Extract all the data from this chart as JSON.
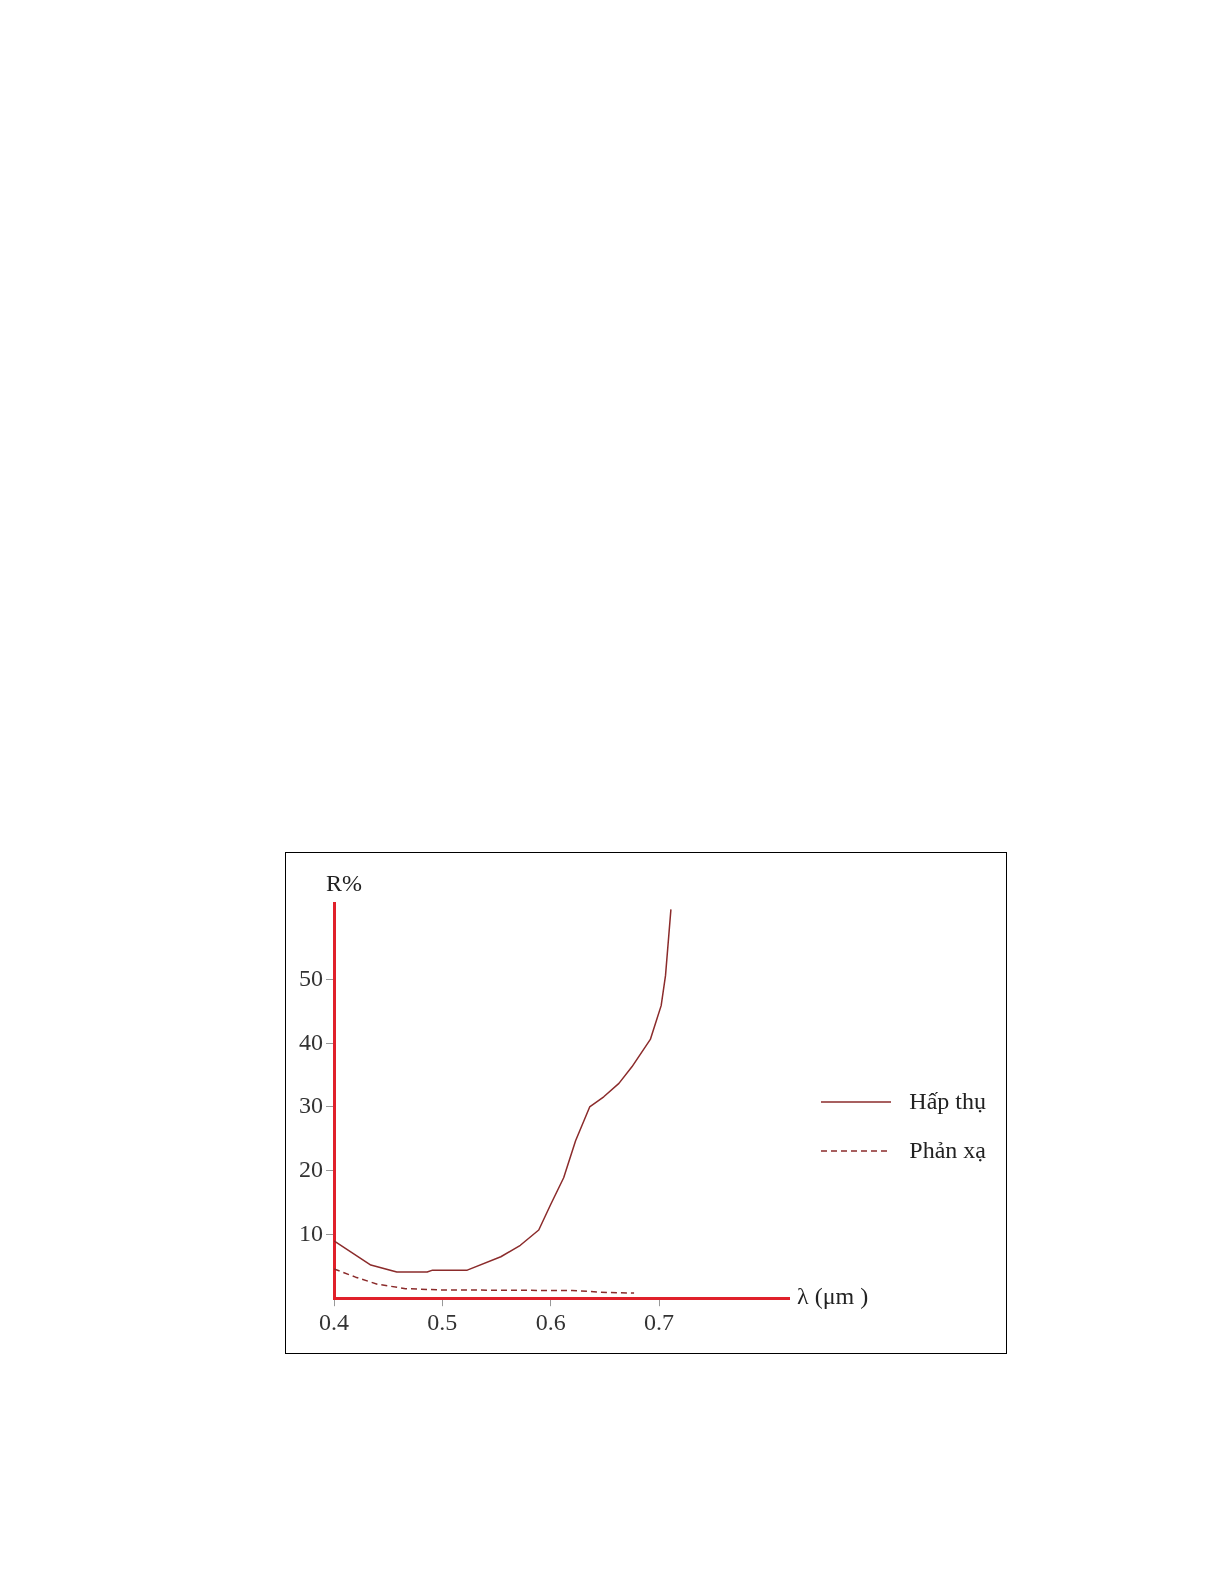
{
  "chart_data": {
    "type": "line",
    "xlabel": "λ (μm )",
    "ylabel": "R%",
    "xlim": [
      0.4,
      0.82
    ],
    "xticks": [
      0.4,
      0.5,
      0.6,
      0.7
    ],
    "ylim": [
      0,
      62
    ],
    "yticks": [
      10,
      20,
      30,
      40,
      50
    ],
    "grid": false,
    "legend": "right",
    "marker": "none",
    "series": [
      {
        "name": "Hấp thụ",
        "color": "#8b2b2b",
        "line_style": "solid",
        "x": [
          0.4,
          0.434,
          0.458,
          0.486,
          0.491,
          0.523,
          0.554,
          0.572,
          0.589,
          0.6,
          0.612,
          0.623,
          0.636,
          0.649,
          0.663,
          0.675,
          0.692,
          0.702,
          0.706,
          0.711
        ],
        "values": [
          9,
          5.2,
          4.1,
          4.1,
          4.4,
          4.4,
          6.5,
          8.3,
          10.7,
          14.7,
          18.9,
          24.7,
          30,
          31.6,
          33.7,
          36.3,
          40.6,
          45.9,
          50.6,
          61
        ]
      },
      {
        "name": "Phản xạ",
        "color": "#8b2b2b",
        "line_style": "dashed",
        "x": [
          0.4,
          0.42,
          0.44,
          0.466,
          0.497,
          0.62,
          0.652,
          0.677
        ],
        "values": [
          4.6,
          3.3,
          2.2,
          1.5,
          1.3,
          1.2,
          0.9,
          0.8
        ]
      }
    ]
  }
}
